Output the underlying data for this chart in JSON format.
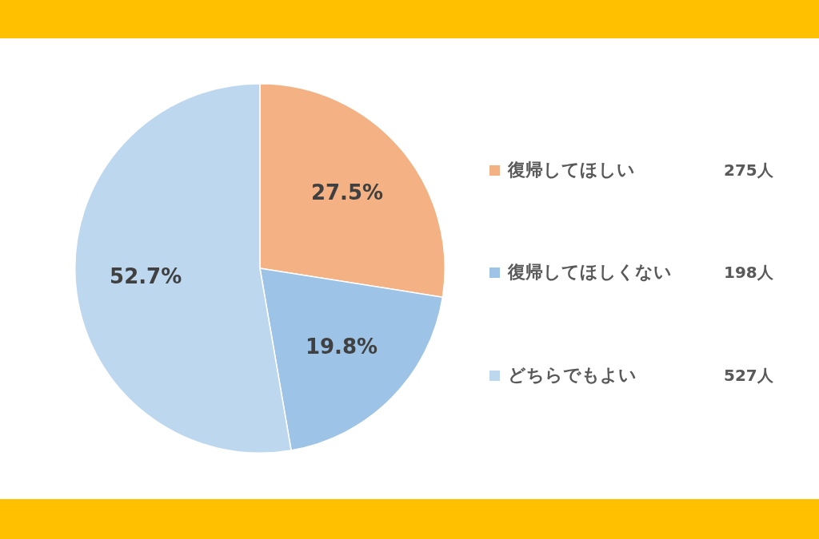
{
  "chart_data": {
    "type": "pie",
    "categories": [
      "復帰してほしい",
      "復帰してほしくない",
      "どちらでもよい"
    ],
    "values": [
      27.5,
      19.8,
      52.7
    ],
    "colors": [
      "#f4b183",
      "#9dc3e6",
      "#bdd7ee"
    ],
    "value_labels": [
      "27.5%",
      "19.8%",
      "52.7%"
    ],
    "annotations": [
      "275人",
      "198人",
      "527人"
    ],
    "legend": "right"
  }
}
